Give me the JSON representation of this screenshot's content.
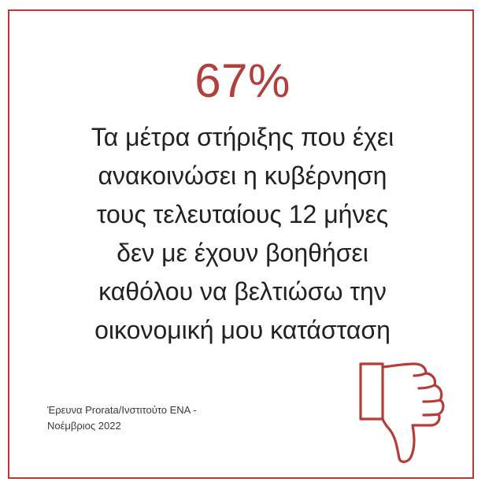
{
  "headline": {
    "percent": "67%"
  },
  "statement": {
    "lines": [
      "Τα μέτρα στήριξης που έχει",
      "ανακοινώσει η κυβέρνηση",
      "τους τελευταίους 12 μήνες",
      "δεν με έχουν βοηθήσει",
      "καθόλου να βελτιώσω την",
      "οικονομική μου κατάσταση"
    ]
  },
  "source": {
    "lines": [
      "Έρευνα Prorata/Ινστιτούτο ΕΝΑ -",
      "Νοέμβριος 2022"
    ]
  },
  "icons": {
    "thumb": "thumbs-down-icon"
  },
  "colors": {
    "accent": "#b0403e",
    "border": "#b83a36",
    "text": "#222222"
  }
}
